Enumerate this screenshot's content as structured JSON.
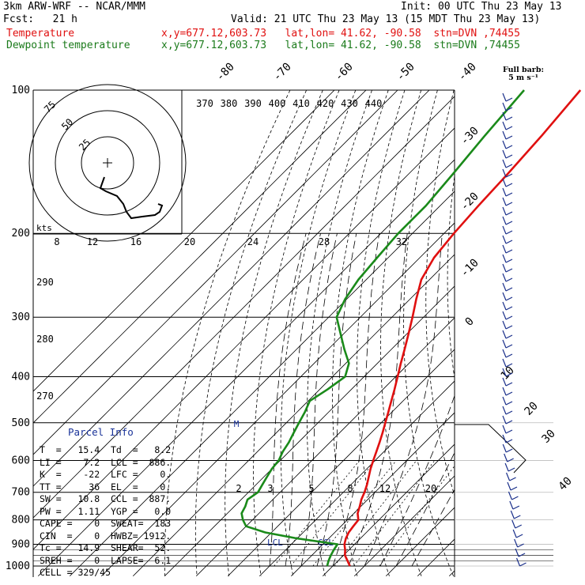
{
  "header": {
    "model": "3km ARW-WRF -- NCAR/MMM",
    "init": "Init: 00 UTC Thu 23 May 13",
    "fcst": "Fcst:   21 h",
    "valid": "Valid: 21 UTC Thu 23 May 13 (15 MDT Thu 23 May 13)",
    "temp_label": "Temperature",
    "dew_label": "Dewpoint temperature",
    "temp_info": "x,y=677.12,603.73   lat,lon= 41.62, -90.58  stn=DVN ,74455",
    "dew_info": "x,y=677.12,603.73   lat,lon= 41.62, -90.58  stn=DVN ,74455"
  },
  "barb_legend": {
    "line1": "Full barb:",
    "line2": "5 m s⁻¹"
  },
  "hodograph": {
    "unit": "kts",
    "rings": [
      "25",
      "50",
      "75"
    ]
  },
  "parcel_info": {
    "title": "Parcel Info",
    "rows": [
      "T  =   15.4  Td  =   8.2",
      "LI =    7.2  LCL =  886.",
      "K  =    -22  LFC =    0.",
      "TT =     36  EL  =    0.",
      "SW =   10.8  CCL =  887.",
      "PW =   1.11  YGP =   0.0",
      "CAPE =    0  SWEAT=  183",
      "CIN  =    0  HWBZ= 1912.",
      "Tc =   14.9  SHEAR=  52.",
      "SREH =    0  LAPSE=  6.1",
      "CELL = 329/45"
    ]
  },
  "chart_data": {
    "type": "line",
    "diagram": "skew-T log-P",
    "ylabel_ticks": [
      "100",
      "200",
      "300",
      "400",
      "500",
      "600",
      "700",
      "800",
      "900",
      "1000"
    ],
    "isotherm_labels": [
      "-80",
      "-70",
      "-60",
      "-50",
      "-40",
      "-30",
      "-20",
      "-10",
      "0",
      "10",
      "20",
      "30",
      "40"
    ],
    "theta_labels": [
      "370",
      "380",
      "390",
      "400",
      "410",
      "420",
      "430",
      "440"
    ],
    "theta_side_labels": [
      "290",
      "280",
      "270"
    ],
    "mixing_ratio_labels": [
      "2",
      "3",
      "5",
      "8",
      "12",
      "20"
    ],
    "hodo_speed_labels": [
      "8",
      "12",
      "16",
      "20",
      "24",
      "28",
      "32"
    ],
    "markers": {
      "m_label": "M",
      "lcl_label": "LCL",
      "ccl_label": "CCL"
    },
    "series": [
      {
        "name": "Temperature",
        "color": "#e01010",
        "points": [
          [
            1000,
            15.4
          ],
          [
            975,
            13.0
          ],
          [
            950,
            10.5
          ],
          [
            925,
            8.8
          ],
          [
            900,
            6.8
          ],
          [
            875,
            5.4
          ],
          [
            850,
            4.4
          ],
          [
            825,
            3.9
          ],
          [
            800,
            3.5
          ],
          [
            775,
            1.2
          ],
          [
            750,
            -0.3
          ],
          [
            725,
            -2.0
          ],
          [
            700,
            -3.3
          ],
          [
            675,
            -4.9
          ],
          [
            650,
            -6.8
          ],
          [
            625,
            -8.8
          ],
          [
            600,
            -10.6
          ],
          [
            575,
            -12.4
          ],
          [
            550,
            -14.3
          ],
          [
            525,
            -16.4
          ],
          [
            500,
            -18.7
          ],
          [
            475,
            -21.1
          ],
          [
            450,
            -23.7
          ],
          [
            425,
            -26.4
          ],
          [
            400,
            -29.4
          ],
          [
            375,
            -32.6
          ],
          [
            350,
            -35.9
          ],
          [
            325,
            -39.5
          ],
          [
            300,
            -43.5
          ],
          [
            275,
            -48.0
          ],
          [
            250,
            -52.6
          ],
          [
            225,
            -55.5
          ],
          [
            200,
            -56.9
          ],
          [
            175,
            -57.9
          ],
          [
            150,
            -58.7
          ],
          [
            125,
            -60.0
          ],
          [
            100,
            -62.2
          ]
        ]
      },
      {
        "name": "Dewpoint temperature",
        "color": "#1a8a1a",
        "points": [
          [
            1000,
            8.2
          ],
          [
            975,
            7.0
          ],
          [
            950,
            6.0
          ],
          [
            925,
            5.2
          ],
          [
            900,
            4.6
          ],
          [
            875,
            -10.0
          ],
          [
            850,
            -22.0
          ],
          [
            825,
            -30.0
          ],
          [
            800,
            -33.0
          ],
          [
            775,
            -35.5
          ],
          [
            750,
            -36.5
          ],
          [
            725,
            -38.0
          ],
          [
            700,
            -37.0
          ],
          [
            675,
            -38.0
          ],
          [
            650,
            -39.0
          ],
          [
            625,
            -40.0
          ],
          [
            600,
            -40.5
          ],
          [
            575,
            -42.0
          ],
          [
            550,
            -43.0
          ],
          [
            525,
            -44.5
          ],
          [
            500,
            -46.0
          ],
          [
            475,
            -47.5
          ],
          [
            450,
            -49.5
          ],
          [
            425,
            -47.5
          ],
          [
            400,
            -46.0
          ],
          [
            375,
            -49.0
          ],
          [
            350,
            -55.0
          ],
          [
            325,
            -61.0
          ],
          [
            300,
            -67.5
          ],
          [
            275,
            -70.5
          ],
          [
            250,
            -72.5
          ],
          [
            225,
            -73.5
          ],
          [
            200,
            -74.5
          ],
          [
            175,
            -74.5
          ],
          [
            150,
            -76.0
          ],
          [
            125,
            -78.0
          ],
          [
            100,
            -80.0
          ]
        ]
      }
    ]
  }
}
